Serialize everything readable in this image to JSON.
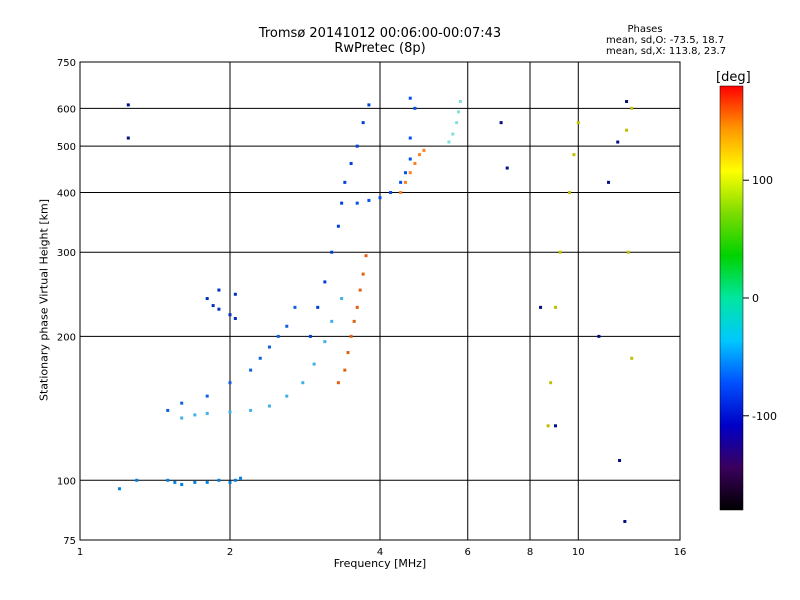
{
  "header": {
    "title": "Tromsø 20141012 00:06:00-00:07:43",
    "subtitle": "RwPretec (8p)",
    "phases_title": "Phases",
    "phases_o": "mean, sd,O: -73.5, 18.7",
    "phases_x": "mean, sd,X: 113.8, 23.7"
  },
  "colorbar": {
    "unit_label": "[deg]",
    "ticks": [
      "100",
      "0",
      "-100"
    ],
    "tick_values": [
      100,
      0,
      -100
    ],
    "range": [
      -180,
      180
    ],
    "colors": [
      "#000000",
      "#3a005c",
      "#0000c8",
      "#0050ff",
      "#00c8ff",
      "#00e6a0",
      "#00d200",
      "#7ddc00",
      "#ffff00",
      "#ff9600",
      "#ff0000"
    ]
  },
  "chart_data": {
    "type": "scatter",
    "xlabel": "Frequency [MHz]",
    "ylabel": "Stationary phase Virtual Height [km]",
    "x_scale": "log",
    "y_scale": "log",
    "xlim": [
      1,
      16
    ],
    "ylim": [
      75,
      750
    ],
    "x_ticks": [
      "1",
      "2",
      "4",
      "6",
      "8",
      "10",
      "16"
    ],
    "x_tick_values": [
      1,
      2,
      4,
      6,
      8,
      10,
      16
    ],
    "y_ticks": [
      "750",
      "600",
      "500",
      "400",
      "300",
      "200",
      "100",
      "75"
    ],
    "y_tick_values": [
      750,
      600,
      500,
      400,
      300,
      200,
      100,
      75
    ],
    "grid": true,
    "series": [
      {
        "color": "#0080e0",
        "points": [
          [
            1.5,
            100
          ],
          [
            1.55,
            99
          ],
          [
            1.6,
            98
          ],
          [
            1.7,
            99
          ],
          [
            1.8,
            99
          ],
          [
            1.9,
            100
          ],
          [
            2.0,
            99
          ],
          [
            2.05,
            100
          ],
          [
            2.1,
            101
          ],
          [
            1.3,
            100
          ],
          [
            1.2,
            96
          ]
        ]
      },
      {
        "color": "#40b0e8",
        "points": [
          [
            1.6,
            135
          ],
          [
            1.7,
            137
          ],
          [
            1.8,
            138
          ],
          [
            2.0,
            139
          ],
          [
            2.2,
            140
          ],
          [
            2.4,
            143
          ],
          [
            2.6,
            150
          ],
          [
            2.8,
            160
          ],
          [
            2.95,
            175
          ],
          [
            3.1,
            195
          ],
          [
            3.2,
            215
          ],
          [
            3.35,
            240
          ]
        ]
      },
      {
        "color": "#1060e0",
        "points": [
          [
            1.5,
            140
          ],
          [
            1.6,
            145
          ],
          [
            1.8,
            150
          ],
          [
            2.0,
            160
          ],
          [
            2.2,
            170
          ],
          [
            2.3,
            180
          ],
          [
            2.4,
            190
          ],
          [
            2.5,
            200
          ],
          [
            2.6,
            210
          ],
          [
            2.7,
            230
          ]
        ]
      },
      {
        "color": "#0030c0",
        "points": [
          [
            1.8,
            240
          ],
          [
            1.85,
            232
          ],
          [
            1.9,
            228
          ],
          [
            2.0,
            222
          ],
          [
            2.05,
            218
          ],
          [
            1.9,
            250
          ],
          [
            2.05,
            245
          ]
        ]
      },
      {
        "color": "#0040d8",
        "points": [
          [
            2.9,
            200
          ],
          [
            3.0,
            230
          ],
          [
            3.1,
            260
          ],
          [
            3.2,
            300
          ],
          [
            3.3,
            340
          ],
          [
            3.35,
            380
          ],
          [
            3.4,
            420
          ],
          [
            3.5,
            460
          ],
          [
            3.6,
            500
          ],
          [
            3.7,
            560
          ],
          [
            3.8,
            610
          ]
        ]
      },
      {
        "color": "#0050f0",
        "points": [
          [
            3.6,
            380
          ],
          [
            3.8,
            385
          ],
          [
            4.0,
            390
          ],
          [
            4.2,
            400
          ],
          [
            4.4,
            420
          ],
          [
            4.5,
            440
          ],
          [
            4.6,
            470
          ],
          [
            4.6,
            520
          ],
          [
            4.7,
            600
          ],
          [
            4.6,
            630
          ]
        ]
      },
      {
        "color": "#e06010",
        "points": [
          [
            3.3,
            160
          ],
          [
            3.4,
            170
          ],
          [
            3.45,
            185
          ],
          [
            3.5,
            200
          ],
          [
            3.55,
            215
          ],
          [
            3.6,
            230
          ],
          [
            3.65,
            250
          ],
          [
            3.7,
            270
          ],
          [
            3.75,
            295
          ]
        ]
      },
      {
        "color": "#ff8020",
        "points": [
          [
            4.4,
            400
          ],
          [
            4.5,
            420
          ],
          [
            4.6,
            440
          ],
          [
            4.7,
            460
          ],
          [
            4.8,
            480
          ],
          [
            4.9,
            490
          ]
        ]
      },
      {
        "color": "#80e0e0",
        "points": [
          [
            5.5,
            510
          ],
          [
            5.6,
            530
          ],
          [
            5.7,
            560
          ],
          [
            5.75,
            590
          ],
          [
            5.8,
            620
          ]
        ]
      },
      {
        "color": "#c0c000",
        "points": [
          [
            8.7,
            130
          ],
          [
            8.8,
            160
          ],
          [
            9.0,
            230
          ],
          [
            9.2,
            300
          ],
          [
            9.6,
            400
          ],
          [
            9.8,
            480
          ],
          [
            10.0,
            560
          ],
          [
            12.5,
            540
          ],
          [
            12.8,
            600
          ],
          [
            12.6,
            300
          ],
          [
            12.8,
            180
          ]
        ]
      },
      {
        "color": "#001080",
        "points": [
          [
            1.25,
            610
          ],
          [
            1.25,
            520
          ],
          [
            12.5,
            620
          ],
          [
            12.0,
            510
          ],
          [
            11.5,
            420
          ],
          [
            11.0,
            200
          ],
          [
            12.1,
            110
          ],
          [
            12.4,
            82
          ],
          [
            9.0,
            130
          ],
          [
            8.4,
            230
          ],
          [
            7.0,
            560
          ],
          [
            7.2,
            450
          ]
        ]
      }
    ]
  }
}
